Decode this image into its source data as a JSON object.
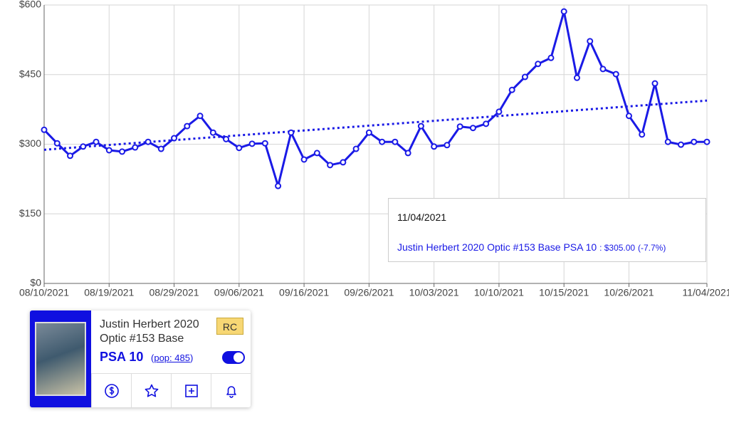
{
  "chart_data": {
    "type": "line",
    "categories": [
      "08/10/2021",
      null,
      null,
      null,
      null,
      "08/19/2021",
      null,
      null,
      null,
      null,
      "08/29/2021",
      null,
      null,
      null,
      null,
      "09/06/2021",
      null,
      null,
      null,
      null,
      "09/16/2021",
      null,
      null,
      null,
      null,
      "09/26/2021",
      null,
      null,
      null,
      null,
      "10/03/2021",
      null,
      null,
      null,
      null,
      "10/10/2021",
      null,
      null,
      null,
      null,
      "10/15/2021",
      null,
      null,
      null,
      null,
      "10/26/2021",
      null,
      null,
      null,
      null,
      null,
      "11/04/2021"
    ],
    "series": [
      {
        "color": "#1a1ae6",
        "values": [
          331,
          302,
          275,
          295,
          305,
          287,
          284,
          293,
          305,
          290,
          313,
          339,
          361,
          325,
          311,
          292,
          301,
          302,
          210,
          325,
          267,
          281,
          255,
          261,
          290,
          325,
          305,
          305,
          281,
          339,
          295,
          298,
          338,
          335,
          344,
          370,
          417,
          445,
          473,
          486,
          586,
          443,
          522,
          462,
          451,
          361,
          321,
          431,
          305,
          299,
          305,
          305
        ]
      }
    ],
    "trend": [
      288,
      394
    ],
    "ylim": [
      0,
      600
    ],
    "yticks": [
      {
        "value": 0,
        "label": "$0"
      },
      {
        "value": 150,
        "label": "$150"
      },
      {
        "value": 300,
        "label": "$300"
      },
      {
        "value": 450,
        "label": "$450"
      },
      {
        "value": 600,
        "label": "$600"
      }
    ],
    "grid": true,
    "tooltip": {
      "date": "11/04/2021",
      "name": "Justin Herbert 2020 Optic #153 Base PSA 10",
      "price": ": $305.00",
      "change": "(-7.7%)"
    }
  },
  "card": {
    "title": "Justin Herbert 2020 Optic #153 Base",
    "badge": "RC",
    "grade": "PSA 10",
    "pop_open": "(",
    "pop": "pop: 485",
    "pop_close": ")"
  }
}
